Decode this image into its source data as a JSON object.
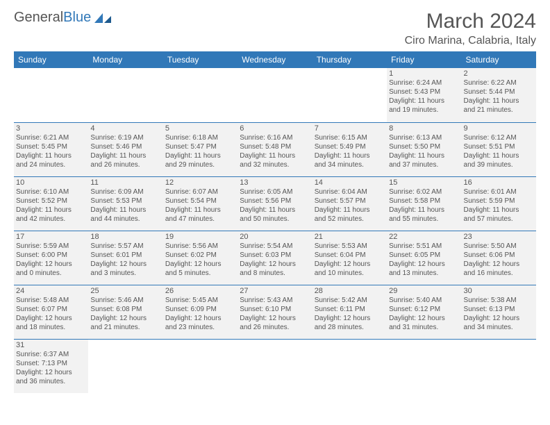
{
  "logo": {
    "text1": "General",
    "text2": "Blue"
  },
  "title": "March 2024",
  "location": "Ciro Marina, Calabria, Italy",
  "colors": {
    "header_bg": "#3178b8",
    "header_fg": "#ffffff",
    "cell_bg": "#f2f2f2",
    "text": "#555555",
    "border": "#3178b8"
  },
  "daysOfWeek": [
    "Sunday",
    "Monday",
    "Tuesday",
    "Wednesday",
    "Thursday",
    "Friday",
    "Saturday"
  ],
  "weeks": [
    [
      null,
      null,
      null,
      null,
      null,
      {
        "n": "1",
        "sr": "Sunrise: 6:24 AM",
        "ss": "Sunset: 5:43 PM",
        "d1": "Daylight: 11 hours",
        "d2": "and 19 minutes."
      },
      {
        "n": "2",
        "sr": "Sunrise: 6:22 AM",
        "ss": "Sunset: 5:44 PM",
        "d1": "Daylight: 11 hours",
        "d2": "and 21 minutes."
      }
    ],
    [
      {
        "n": "3",
        "sr": "Sunrise: 6:21 AM",
        "ss": "Sunset: 5:45 PM",
        "d1": "Daylight: 11 hours",
        "d2": "and 24 minutes."
      },
      {
        "n": "4",
        "sr": "Sunrise: 6:19 AM",
        "ss": "Sunset: 5:46 PM",
        "d1": "Daylight: 11 hours",
        "d2": "and 26 minutes."
      },
      {
        "n": "5",
        "sr": "Sunrise: 6:18 AM",
        "ss": "Sunset: 5:47 PM",
        "d1": "Daylight: 11 hours",
        "d2": "and 29 minutes."
      },
      {
        "n": "6",
        "sr": "Sunrise: 6:16 AM",
        "ss": "Sunset: 5:48 PM",
        "d1": "Daylight: 11 hours",
        "d2": "and 32 minutes."
      },
      {
        "n": "7",
        "sr": "Sunrise: 6:15 AM",
        "ss": "Sunset: 5:49 PM",
        "d1": "Daylight: 11 hours",
        "d2": "and 34 minutes."
      },
      {
        "n": "8",
        "sr": "Sunrise: 6:13 AM",
        "ss": "Sunset: 5:50 PM",
        "d1": "Daylight: 11 hours",
        "d2": "and 37 minutes."
      },
      {
        "n": "9",
        "sr": "Sunrise: 6:12 AM",
        "ss": "Sunset: 5:51 PM",
        "d1": "Daylight: 11 hours",
        "d2": "and 39 minutes."
      }
    ],
    [
      {
        "n": "10",
        "sr": "Sunrise: 6:10 AM",
        "ss": "Sunset: 5:52 PM",
        "d1": "Daylight: 11 hours",
        "d2": "and 42 minutes."
      },
      {
        "n": "11",
        "sr": "Sunrise: 6:09 AM",
        "ss": "Sunset: 5:53 PM",
        "d1": "Daylight: 11 hours",
        "d2": "and 44 minutes."
      },
      {
        "n": "12",
        "sr": "Sunrise: 6:07 AM",
        "ss": "Sunset: 5:54 PM",
        "d1": "Daylight: 11 hours",
        "d2": "and 47 minutes."
      },
      {
        "n": "13",
        "sr": "Sunrise: 6:05 AM",
        "ss": "Sunset: 5:56 PM",
        "d1": "Daylight: 11 hours",
        "d2": "and 50 minutes."
      },
      {
        "n": "14",
        "sr": "Sunrise: 6:04 AM",
        "ss": "Sunset: 5:57 PM",
        "d1": "Daylight: 11 hours",
        "d2": "and 52 minutes."
      },
      {
        "n": "15",
        "sr": "Sunrise: 6:02 AM",
        "ss": "Sunset: 5:58 PM",
        "d1": "Daylight: 11 hours",
        "d2": "and 55 minutes."
      },
      {
        "n": "16",
        "sr": "Sunrise: 6:01 AM",
        "ss": "Sunset: 5:59 PM",
        "d1": "Daylight: 11 hours",
        "d2": "and 57 minutes."
      }
    ],
    [
      {
        "n": "17",
        "sr": "Sunrise: 5:59 AM",
        "ss": "Sunset: 6:00 PM",
        "d1": "Daylight: 12 hours",
        "d2": "and 0 minutes."
      },
      {
        "n": "18",
        "sr": "Sunrise: 5:57 AM",
        "ss": "Sunset: 6:01 PM",
        "d1": "Daylight: 12 hours",
        "d2": "and 3 minutes."
      },
      {
        "n": "19",
        "sr": "Sunrise: 5:56 AM",
        "ss": "Sunset: 6:02 PM",
        "d1": "Daylight: 12 hours",
        "d2": "and 5 minutes."
      },
      {
        "n": "20",
        "sr": "Sunrise: 5:54 AM",
        "ss": "Sunset: 6:03 PM",
        "d1": "Daylight: 12 hours",
        "d2": "and 8 minutes."
      },
      {
        "n": "21",
        "sr": "Sunrise: 5:53 AM",
        "ss": "Sunset: 6:04 PM",
        "d1": "Daylight: 12 hours",
        "d2": "and 10 minutes."
      },
      {
        "n": "22",
        "sr": "Sunrise: 5:51 AM",
        "ss": "Sunset: 6:05 PM",
        "d1": "Daylight: 12 hours",
        "d2": "and 13 minutes."
      },
      {
        "n": "23",
        "sr": "Sunrise: 5:50 AM",
        "ss": "Sunset: 6:06 PM",
        "d1": "Daylight: 12 hours",
        "d2": "and 16 minutes."
      }
    ],
    [
      {
        "n": "24",
        "sr": "Sunrise: 5:48 AM",
        "ss": "Sunset: 6:07 PM",
        "d1": "Daylight: 12 hours",
        "d2": "and 18 minutes."
      },
      {
        "n": "25",
        "sr": "Sunrise: 5:46 AM",
        "ss": "Sunset: 6:08 PM",
        "d1": "Daylight: 12 hours",
        "d2": "and 21 minutes."
      },
      {
        "n": "26",
        "sr": "Sunrise: 5:45 AM",
        "ss": "Sunset: 6:09 PM",
        "d1": "Daylight: 12 hours",
        "d2": "and 23 minutes."
      },
      {
        "n": "27",
        "sr": "Sunrise: 5:43 AM",
        "ss": "Sunset: 6:10 PM",
        "d1": "Daylight: 12 hours",
        "d2": "and 26 minutes."
      },
      {
        "n": "28",
        "sr": "Sunrise: 5:42 AM",
        "ss": "Sunset: 6:11 PM",
        "d1": "Daylight: 12 hours",
        "d2": "and 28 minutes."
      },
      {
        "n": "29",
        "sr": "Sunrise: 5:40 AM",
        "ss": "Sunset: 6:12 PM",
        "d1": "Daylight: 12 hours",
        "d2": "and 31 minutes."
      },
      {
        "n": "30",
        "sr": "Sunrise: 5:38 AM",
        "ss": "Sunset: 6:13 PM",
        "d1": "Daylight: 12 hours",
        "d2": "and 34 minutes."
      }
    ],
    [
      {
        "n": "31",
        "sr": "Sunrise: 6:37 AM",
        "ss": "Sunset: 7:13 PM",
        "d1": "Daylight: 12 hours",
        "d2": "and 36 minutes."
      },
      null,
      null,
      null,
      null,
      null,
      null
    ]
  ]
}
